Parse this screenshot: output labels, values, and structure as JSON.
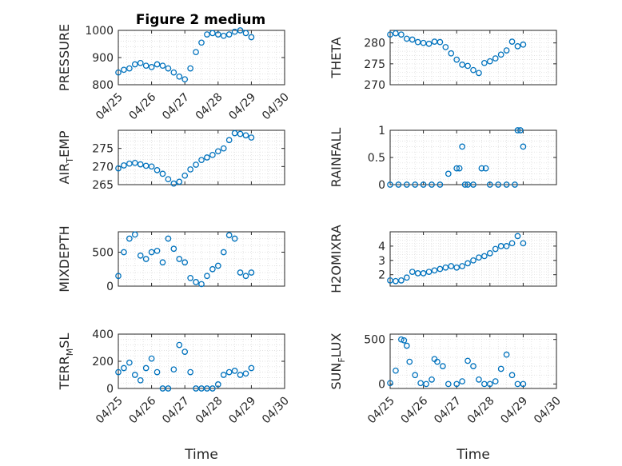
{
  "title": "Figure 2 medium",
  "colors": {
    "marker": "#0072BD",
    "axis": "#262626",
    "grid": "#d9d9d9",
    "background": "#ffffff"
  },
  "chart_data": [
    {
      "type": "scatter",
      "ylabel": "PRESSURE",
      "xlabel": "",
      "title": "Figure 2 medium",
      "xlim": [
        "04/25",
        "04/30"
      ],
      "ylim": [
        800,
        1000
      ],
      "yticks": [
        "800",
        "900",
        "1000"
      ],
      "xticks": [
        "04/25",
        "04/26",
        "04/27",
        "04/28",
        "04/29",
        "04/30"
      ],
      "x": [
        "04/25 00:00",
        "04/25 04:00",
        "04/25 08:00",
        "04/25 12:00",
        "04/25 16:00",
        "04/25 20:00",
        "04/26 00:00",
        "04/26 04:00",
        "04/26 08:00",
        "04/26 12:00",
        "04/26 16:00",
        "04/26 20:00",
        "04/27 00:00",
        "04/27 04:00",
        "04/27 08:00",
        "04/27 12:00",
        "04/27 16:00",
        "04/27 20:00",
        "04/28 00:00",
        "04/28 04:00",
        "04/28 08:00",
        "04/28 12:00",
        "04/28 16:00",
        "04/28 20:00",
        "04/29 00:00"
      ],
      "y": [
        845,
        855,
        860,
        875,
        880,
        870,
        865,
        875,
        870,
        860,
        845,
        830,
        820,
        860,
        920,
        955,
        985,
        990,
        985,
        980,
        985,
        995,
        1000,
        990,
        975
      ],
      "grid": true
    },
    {
      "type": "scatter",
      "ylabel": "THETA",
      "xlim": [
        "04/25",
        "04/30"
      ],
      "ylim": [
        270,
        283
      ],
      "yticks": [
        "270",
        "275",
        "280"
      ],
      "x": [
        "04/25 00:00",
        "04/25 04:00",
        "04/25 08:00",
        "04/25 12:00",
        "04/25 16:00",
        "04/25 20:00",
        "04/26 00:00",
        "04/26 04:00",
        "04/26 08:00",
        "04/26 12:00",
        "04/26 16:00",
        "04/26 20:00",
        "04/27 00:00",
        "04/27 04:00",
        "04/27 08:00",
        "04/27 12:00",
        "04/27 16:00",
        "04/27 20:00",
        "04/28 00:00",
        "04/28 04:00",
        "04/28 08:00",
        "04/28 12:00",
        "04/28 16:00",
        "04/28 20:00",
        "04/29 00:00"
      ],
      "y": [
        282,
        282.3,
        282,
        281,
        280.8,
        280.2,
        280,
        279.8,
        280.3,
        280.2,
        279,
        277.5,
        276,
        274.8,
        274.5,
        273.5,
        272.8,
        275.2,
        275.6,
        276.3,
        277.2,
        278.2,
        280.3,
        279.2,
        279.6
      ],
      "grid": true
    },
    {
      "type": "scatter",
      "ylabel": "AIR_TEMP",
      "ylabel_base": "AIR",
      "ylabel_sub": "T",
      "ylabel_rest": "EMP",
      "xlim": [
        "04/25",
        "04/30"
      ],
      "ylim": [
        265,
        280
      ],
      "yticks": [
        "265",
        "270",
        "275"
      ],
      "x": [
        "04/25 00:00",
        "04/25 04:00",
        "04/25 08:00",
        "04/25 12:00",
        "04/25 16:00",
        "04/25 20:00",
        "04/26 00:00",
        "04/26 04:00",
        "04/26 08:00",
        "04/26 12:00",
        "04/26 16:00",
        "04/26 20:00",
        "04/27 00:00",
        "04/27 04:00",
        "04/27 08:00",
        "04/27 12:00",
        "04/27 16:00",
        "04/27 20:00",
        "04/28 00:00",
        "04/28 04:00",
        "04/28 08:00",
        "04/28 12:00",
        "04/28 16:00",
        "04/28 20:00",
        "04/29 00:00"
      ],
      "y": [
        269.5,
        270.3,
        270.8,
        271,
        270.6,
        270.2,
        270,
        269,
        268,
        266.5,
        265.3,
        265.8,
        267.5,
        269.2,
        270.5,
        271.8,
        272.5,
        273.2,
        274.2,
        275,
        277.3,
        279.2,
        279,
        278.6,
        278
      ],
      "grid": true
    },
    {
      "type": "scatter",
      "ylabel": "RAINFALL",
      "xlim": [
        "04/25",
        "04/30"
      ],
      "ylim": [
        0,
        1
      ],
      "yticks": [
        "0",
        "0.5",
        "1"
      ],
      "x": [
        "04/25 00:00",
        "04/25 06:00",
        "04/25 12:00",
        "04/25 18:00",
        "04/26 00:00",
        "04/26 06:00",
        "04/26 12:00",
        "04/26 18:00",
        "04/27 00:00",
        "04/27 02:00",
        "04/27 04:00",
        "04/27 06:00",
        "04/27 08:00",
        "04/27 12:00",
        "04/27 18:00",
        "04/27 21:00",
        "04/28 00:00",
        "04/28 06:00",
        "04/28 12:00",
        "04/28 18:00",
        "04/28 20:00",
        "04/28 22:00",
        "04/29 00:00"
      ],
      "y": [
        0,
        0,
        0,
        0,
        0,
        0,
        0,
        0.2,
        0.3,
        0.3,
        0.7,
        0,
        0,
        0,
        0.3,
        0.3,
        0,
        0,
        0,
        0,
        1,
        1,
        0.7
      ],
      "grid": true
    },
    {
      "type": "scatter",
      "ylabel": "MIXDEPTH",
      "xlim": [
        "04/25",
        "04/30"
      ],
      "ylim": [
        0,
        800
      ],
      "yticks": [
        "0",
        "500"
      ],
      "x": [
        "04/25 00:00",
        "04/25 04:00",
        "04/25 08:00",
        "04/25 12:00",
        "04/25 16:00",
        "04/25 20:00",
        "04/26 00:00",
        "04/26 04:00",
        "04/26 08:00",
        "04/26 12:00",
        "04/26 16:00",
        "04/26 20:00",
        "04/27 00:00",
        "04/27 04:00",
        "04/27 08:00",
        "04/27 12:00",
        "04/27 16:00",
        "04/27 20:00",
        "04/28 00:00",
        "04/28 04:00",
        "04/28 08:00",
        "04/28 12:00",
        "04/28 16:00",
        "04/28 20:00",
        "04/29 00:00"
      ],
      "y": [
        150,
        500,
        700,
        760,
        450,
        400,
        500,
        520,
        350,
        700,
        550,
        400,
        350,
        120,
        60,
        30,
        150,
        250,
        300,
        500,
        750,
        700,
        200,
        150,
        200
      ],
      "grid": true
    },
    {
      "type": "scatter",
      "ylabel": "H2OMIXRA",
      "xlim": [
        "04/25",
        "04/30"
      ],
      "ylim": [
        1.2,
        5
      ],
      "yticks": [
        "2",
        "3",
        "4"
      ],
      "x": [
        "04/25 00:00",
        "04/25 04:00",
        "04/25 08:00",
        "04/25 12:00",
        "04/25 16:00",
        "04/25 20:00",
        "04/26 00:00",
        "04/26 04:00",
        "04/26 08:00",
        "04/26 12:00",
        "04/26 16:00",
        "04/26 20:00",
        "04/27 00:00",
        "04/27 04:00",
        "04/27 08:00",
        "04/27 12:00",
        "04/27 16:00",
        "04/27 20:00",
        "04/28 00:00",
        "04/28 04:00",
        "04/28 08:00",
        "04/28 12:00",
        "04/28 16:00",
        "04/28 20:00",
        "04/29 00:00"
      ],
      "y": [
        1.6,
        1.55,
        1.6,
        1.8,
        2.2,
        2.1,
        2.1,
        2.2,
        2.3,
        2.4,
        2.5,
        2.6,
        2.5,
        2.6,
        2.8,
        3.0,
        3.2,
        3.3,
        3.5,
        3.8,
        4.0,
        4.0,
        4.2,
        4.7,
        4.2
      ],
      "grid": true
    },
    {
      "type": "scatter",
      "ylabel": "TERR_MSL",
      "ylabel_base": "TERR",
      "ylabel_sub": "M",
      "ylabel_rest": "SL",
      "xlabel": "Time",
      "xlim": [
        "04/25",
        "04/30"
      ],
      "ylim": [
        0,
        400
      ],
      "yticks": [
        "0",
        "200",
        "400"
      ],
      "xticks": [
        "04/25",
        "04/26",
        "04/27",
        "04/28",
        "04/29",
        "04/30"
      ],
      "x": [
        "04/25 00:00",
        "04/25 04:00",
        "04/25 08:00",
        "04/25 12:00",
        "04/25 16:00",
        "04/25 20:00",
        "04/26 00:00",
        "04/26 04:00",
        "04/26 08:00",
        "04/26 12:00",
        "04/26 16:00",
        "04/26 20:00",
        "04/27 00:00",
        "04/27 04:00",
        "04/27 08:00",
        "04/27 12:00",
        "04/27 16:00",
        "04/27 20:00",
        "04/28 00:00",
        "04/28 04:00",
        "04/28 08:00",
        "04/28 12:00",
        "04/28 16:00",
        "04/28 20:00",
        "04/29 00:00"
      ],
      "y": [
        120,
        150,
        190,
        100,
        60,
        150,
        220,
        120,
        0,
        0,
        140,
        320,
        270,
        120,
        0,
        0,
        0,
        0,
        30,
        100,
        120,
        130,
        100,
        110,
        150
      ],
      "grid": true
    },
    {
      "type": "scatter",
      "ylabel": "SUN_FLUX",
      "ylabel_base": "SUN",
      "ylabel_sub": "F",
      "ylabel_rest": "LUX",
      "xlabel": "Time",
      "xlim": [
        "04/25",
        "04/30"
      ],
      "ylim": [
        -50,
        560
      ],
      "yticks": [
        "0",
        "500"
      ],
      "xticks": [
        "04/25",
        "04/26",
        "04/27",
        "04/28",
        "04/29",
        "04/30"
      ],
      "x": [
        "04/25 00:00",
        "04/25 04:00",
        "04/25 08:00",
        "04/25 10:00",
        "04/25 12:00",
        "04/25 14:00",
        "04/25 18:00",
        "04/25 22:00",
        "04/26 02:00",
        "04/26 06:00",
        "04/26 08:00",
        "04/26 10:00",
        "04/26 14:00",
        "04/26 18:00",
        "04/27 00:00",
        "04/27 04:00",
        "04/27 08:00",
        "04/27 12:00",
        "04/27 16:00",
        "04/27 20:00",
        "04/28 00:00",
        "04/28 04:00",
        "04/28 08:00",
        "04/28 12:00",
        "04/28 16:00",
        "04/28 20:00",
        "04/29 00:00"
      ],
      "y": [
        10,
        150,
        500,
        490,
        430,
        250,
        100,
        10,
        0,
        50,
        280,
        250,
        200,
        0,
        0,
        30,
        260,
        200,
        50,
        0,
        0,
        30,
        170,
        330,
        100,
        0,
        0
      ],
      "grid": true
    }
  ]
}
